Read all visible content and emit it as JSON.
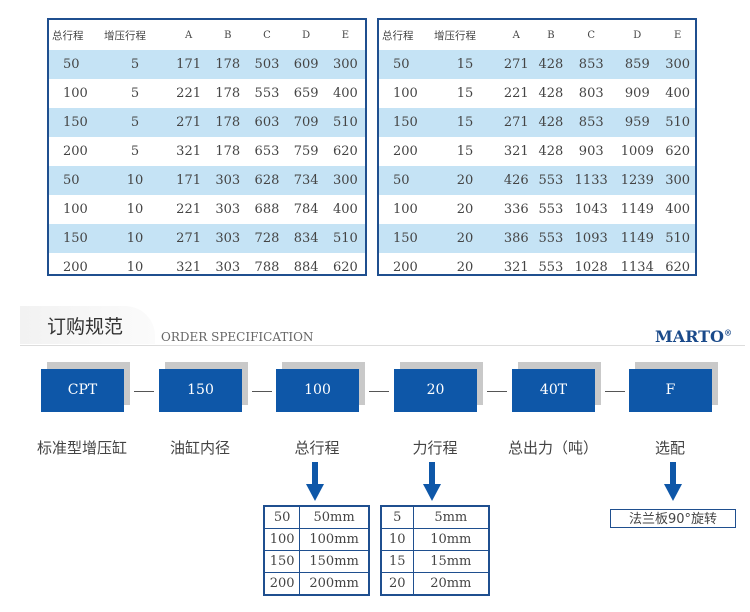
{
  "tables": [
    {
      "headers": [
        "总行程",
        "增压行程",
        "A",
        "B",
        "C",
        "D",
        "E"
      ],
      "rows": [
        [
          "50",
          "5",
          "171",
          "178",
          "503",
          "609",
          "300"
        ],
        [
          "100",
          "5",
          "221",
          "178",
          "553",
          "659",
          "400"
        ],
        [
          "150",
          "5",
          "271",
          "178",
          "603",
          "709",
          "510"
        ],
        [
          "200",
          "5",
          "321",
          "178",
          "653",
          "759",
          "620"
        ],
        [
          "50",
          "10",
          "171",
          "303",
          "628",
          "734",
          "300"
        ],
        [
          "100",
          "10",
          "221",
          "303",
          "688",
          "784",
          "400"
        ],
        [
          "150",
          "10",
          "271",
          "303",
          "728",
          "834",
          "510"
        ],
        [
          "200",
          "10",
          "321",
          "303",
          "788",
          "884",
          "620"
        ]
      ]
    },
    {
      "headers": [
        "总行程",
        "增压行程",
        "A",
        "B",
        "C",
        "D",
        "E"
      ],
      "rows": [
        [
          "50",
          "15",
          "271",
          "428",
          "853",
          "859",
          "300"
        ],
        [
          "100",
          "15",
          "221",
          "428",
          "803",
          "909",
          "400"
        ],
        [
          "150",
          "15",
          "271",
          "428",
          "853",
          "959",
          "510"
        ],
        [
          "200",
          "15",
          "321",
          "428",
          "903",
          "1009",
          "620"
        ],
        [
          "50",
          "20",
          "426",
          "553",
          "1133",
          "1239",
          "300"
        ],
        [
          "100",
          "20",
          "336",
          "553",
          "1043",
          "1149",
          "400"
        ],
        [
          "150",
          "20",
          "386",
          "553",
          "1093",
          "1149",
          "510"
        ],
        [
          "200",
          "20",
          "321",
          "553",
          "1028",
          "1134",
          "620"
        ]
      ]
    }
  ],
  "order": {
    "title": "订购规范",
    "subtitle": "ORDER SPECIFICATION",
    "brand": "MARTO",
    "brand_mark": "®",
    "codes": [
      {
        "code": "CPT",
        "label": "标准型增压缸"
      },
      {
        "code": "150",
        "label": "油缸内径"
      },
      {
        "code": "100",
        "label": "总行程"
      },
      {
        "code": "20",
        "label": "力行程"
      },
      {
        "code": "40T",
        "label": "总出力（吨）"
      },
      {
        "code": "F",
        "label": "选配"
      }
    ],
    "stroke_options": [
      [
        "50",
        "50mm"
      ],
      [
        "100",
        "100mm"
      ],
      [
        "150",
        "150mm"
      ],
      [
        "200",
        "200mm"
      ]
    ],
    "force_stroke_options": [
      [
        "5",
        "5mm"
      ],
      [
        "10",
        "10mm"
      ],
      [
        "15",
        "15mm"
      ],
      [
        "20",
        "20mm"
      ]
    ],
    "option_text": "法兰板90°旋转"
  },
  "colors": {
    "accent": "#0e57a8",
    "row_alt": "#c5e3f5",
    "border": "#1f4f8f"
  }
}
